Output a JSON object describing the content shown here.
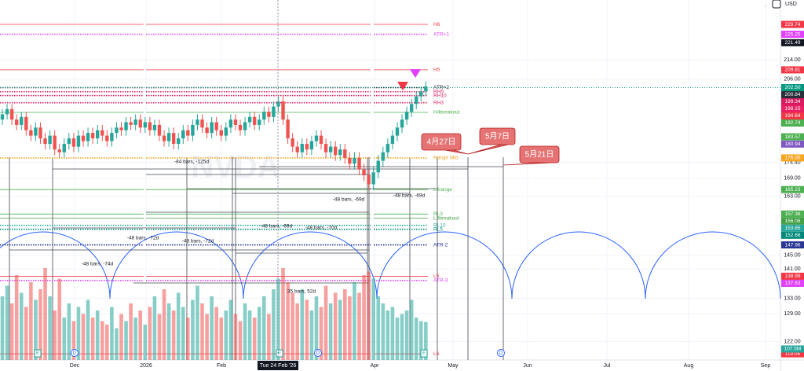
{
  "chart_data": {
    "type": "candlestick",
    "watermark": "NVDA",
    "currency": "USD",
    "log_scale": true,
    "grid": true,
    "ylim": [
      117.6,
      241.2
    ],
    "up_color": "#26a69a",
    "down_color": "#ef5350",
    "open": [
      190,
      192,
      194,
      190,
      188,
      191,
      186,
      184,
      187,
      183,
      181,
      184,
      179,
      178,
      181,
      183,
      180,
      184,
      182,
      185,
      183,
      186,
      184,
      182,
      185,
      187,
      186,
      189,
      188,
      190,
      187,
      189,
      186,
      188,
      184,
      182,
      185,
      181,
      183,
      186,
      184,
      188,
      190,
      187,
      185,
      189,
      186,
      184,
      187,
      190,
      188,
      186,
      189,
      191,
      188,
      190,
      193,
      191,
      195,
      197,
      190,
      183,
      180,
      178,
      181,
      179,
      182,
      184,
      181,
      178,
      180,
      177,
      179,
      176,
      174,
      176,
      172,
      170,
      167,
      171,
      175,
      178,
      181,
      184,
      187,
      190,
      193,
      196,
      199,
      201
    ],
    "high": [
      194,
      196,
      196,
      192,
      193,
      193,
      188,
      189,
      189,
      185,
      186,
      186,
      181,
      183,
      185,
      185,
      186,
      186,
      187,
      187,
      188,
      188,
      186,
      187,
      189,
      189,
      191,
      191,
      192,
      192,
      191,
      191,
      190,
      190,
      186,
      187,
      187,
      185,
      188,
      188,
      190,
      192,
      192,
      189,
      191,
      191,
      188,
      189,
      192,
      192,
      190,
      191,
      193,
      193,
      192,
      195,
      195,
      197,
      199,
      199,
      192,
      185,
      182,
      183,
      183,
      184,
      186,
      186,
      183,
      182,
      182,
      181,
      181,
      178,
      178,
      178,
      174,
      172,
      173,
      177,
      180,
      183,
      186,
      189,
      192,
      195,
      198,
      201,
      203,
      205
    ],
    "low": [
      188,
      190,
      188,
      186,
      186,
      184,
      182,
      182,
      181,
      179,
      179,
      177,
      176,
      176,
      179,
      178,
      178,
      180,
      180,
      181,
      181,
      182,
      180,
      180,
      183,
      184,
      184,
      186,
      186,
      185,
      185,
      184,
      184,
      182,
      180,
      180,
      179,
      179,
      181,
      182,
      182,
      186,
      185,
      183,
      183,
      184,
      182,
      182,
      185,
      186,
      184,
      184,
      187,
      186,
      186,
      188,
      189,
      189,
      193,
      188,
      181,
      178,
      176,
      176,
      177,
      177,
      180,
      179,
      176,
      176,
      175,
      175,
      174,
      172,
      172,
      170,
      168,
      165,
      165,
      169,
      173,
      176,
      179,
      182,
      185,
      188,
      191,
      194,
      197,
      199
    ],
    "close": [
      192,
      194,
      190,
      188,
      191,
      186,
      184,
      187,
      183,
      181,
      184,
      179,
      178,
      181,
      183,
      180,
      184,
      182,
      185,
      183,
      186,
      184,
      182,
      185,
      187,
      186,
      189,
      188,
      190,
      187,
      189,
      186,
      188,
      184,
      182,
      185,
      181,
      183,
      186,
      184,
      188,
      190,
      187,
      185,
      189,
      186,
      184,
      187,
      190,
      188,
      186,
      189,
      191,
      188,
      190,
      193,
      191,
      195,
      197,
      190,
      183,
      180,
      178,
      181,
      179,
      182,
      184,
      181,
      178,
      180,
      177,
      179,
      176,
      174,
      176,
      172,
      170,
      167,
      171,
      175,
      178,
      181,
      184,
      187,
      190,
      193,
      196,
      199,
      201,
      203
    ],
    "volume": [
      180,
      210,
      160,
      240,
      190,
      150,
      220,
      170,
      200,
      260,
      180,
      140,
      230,
      120,
      160,
      110,
      150,
      130,
      170,
      120,
      140,
      110,
      100,
      150,
      90,
      130,
      110,
      160,
      120,
      140,
      100,
      150,
      180,
      130,
      200,
      160,
      140,
      190,
      150,
      120,
      170,
      210,
      160,
      130,
      180,
      150,
      120,
      140,
      170,
      130,
      110,
      160,
      140,
      120,
      150,
      180,
      130,
      200,
      230,
      260,
      220,
      190,
      160,
      200,
      170,
      140,
      180,
      150,
      210,
      160,
      190,
      170,
      200,
      180,
      220,
      190,
      240,
      250,
      230,
      180,
      160,
      140,
      150,
      120,
      130,
      140,
      170,
      120,
      110,
      107.5
    ],
    "yticks": [
      {
        "value": 214,
        "label": "214.00"
      },
      {
        "value": 206,
        "label": "206.00"
      },
      {
        "value": 174.4,
        "label": "174.40"
      },
      {
        "value": 169,
        "label": "169.00"
      },
      {
        "value": 163,
        "label": "163.00"
      },
      {
        "value": 145,
        "label": "145.00"
      },
      {
        "value": 141,
        "label": "141.00"
      },
      {
        "value": 133,
        "label": "133.00"
      },
      {
        "value": 129,
        "label": "129.00"
      },
      {
        "value": 122,
        "label": "122.00"
      }
    ],
    "price_badges": [
      {
        "value": 229.74,
        "label": "229.74",
        "color": "#f23645"
      },
      {
        "value": 225.25,
        "label": "225.25",
        "color": "#e040fb"
      },
      {
        "value": 221.49,
        "label": "221.49",
        "color": "#131722"
      },
      {
        "value": 209.81,
        "label": "209.81",
        "color": "#f23645"
      },
      {
        "value": 202.5,
        "label": "202.50",
        "color": "#089981"
      },
      {
        "value": 200.84,
        "label": "200.84",
        "color": "#2a2e39"
      },
      {
        "value": 199.34,
        "label": "199.34",
        "color": "#d81b60"
      },
      {
        "value": 198.15,
        "label": "198.15",
        "color": "#e91e63"
      },
      {
        "value": 194.64,
        "label": "194.64",
        "color": "#f23645"
      },
      {
        "value": 192.74,
        "label": "192.74",
        "color": "#4caf50"
      },
      {
        "value": 183.57,
        "label": "183.57",
        "color": "#4caf50"
      },
      {
        "value": 180.94,
        "label": "180.94",
        "color": "#7e57c2"
      },
      {
        "value": 176,
        "label": "176.00",
        "color": "#f5a623"
      },
      {
        "value": 165.23,
        "label": "165.23",
        "color": "#4caf50"
      },
      {
        "value": 157.36,
        "label": "157.36",
        "color": "#4caf50"
      },
      {
        "value": 156.06,
        "label": "156.06",
        "color": "#43a047"
      },
      {
        "value": 153.85,
        "label": "153.85",
        "color": "#26a69a"
      },
      {
        "value": 152.66,
        "label": "152.66",
        "color": "#00897b"
      },
      {
        "value": 147.96,
        "label": "147.96",
        "color": "#283593"
      },
      {
        "value": 138.99,
        "label": "138.99",
        "color": "#f23645"
      },
      {
        "value": 137.83,
        "label": "137.83",
        "color": "#e040fb"
      },
      {
        "value": 119.06,
        "label": "119.06",
        "color": "#f23645"
      }
    ],
    "volume_badge": {
      "value": 107.5,
      "label": "107.5M",
      "color": "#26a69a"
    },
    "levels": [
      {
        "value": 229.74,
        "label": "H6",
        "color": "#f23645",
        "style": "solid"
      },
      {
        "value": 225.25,
        "label": "ATR+1",
        "color": "#e040fb",
        "style": "dotted"
      },
      {
        "value": 209.81,
        "label": "H5",
        "color": "#f23645",
        "style": "solid"
      },
      {
        "value": 202.5,
        "label": "ATR+2",
        "color": "#2a2e39",
        "style": "dotted"
      },
      {
        "value": 200.84,
        "label": "RH5",
        "color": "#d81b60",
        "style": "dotted"
      },
      {
        "value": 199.34,
        "label": "RH10",
        "color": "#d81b60",
        "style": "dotted"
      },
      {
        "value": 196.5,
        "label": "RH3",
        "color": "#e91e63",
        "style": "dotted"
      },
      {
        "value": 192.74,
        "label": "H4breakout",
        "color": "#4caf50",
        "style": "solid"
      },
      {
        "value": 176,
        "label": "Range Mid",
        "color": "#f5a623",
        "style": "dotted"
      },
      {
        "value": 165.23,
        "label": "L4range",
        "color": "#4caf50",
        "style": "solid"
      },
      {
        "value": 157.36,
        "label": "RL3",
        "color": "#4caf50",
        "style": "solid"
      },
      {
        "value": 156.06,
        "label": "L3breakout",
        "color": "#43a047",
        "style": "solid"
      },
      {
        "value": 153.85,
        "label": "RL10",
        "color": "#26a69a",
        "style": "dotted"
      },
      {
        "value": 152.66,
        "label": "RL5",
        "color": "#00897b",
        "style": "dotted"
      },
      {
        "value": 147.96,
        "label": "ATR-2",
        "color": "#283593",
        "style": "dotted"
      },
      {
        "value": 138.99,
        "label": "L5",
        "color": "#f23645",
        "style": "solid"
      },
      {
        "value": 137.83,
        "label": "ATR-3",
        "color": "#e040fb",
        "style": "dotted"
      },
      {
        "value": 119.06,
        "label": "L6",
        "color": "#f23645",
        "style": "solid"
      }
    ],
    "xticks": [
      "Dec",
      "2026",
      "Feb",
      "Tue 24 Feb '26",
      "Apr",
      "May",
      "Jun",
      "Jul",
      "Aug",
      "Sep"
    ],
    "callouts": [
      "4月27日",
      "5月7日",
      "5月21日"
    ],
    "measures": [
      "-84 bars, -125d",
      "-48 bars, -69d",
      "-48 bars, -69d",
      "-48 bars, -72d",
      "-48 bars, -72d",
      "-48 bars, -69d",
      "-48 bars, -70d",
      "-48 bars, -74d",
      "35 bars, 52d"
    ],
    "events": [
      "E",
      "D",
      "E",
      "D",
      "E",
      "D"
    ]
  }
}
